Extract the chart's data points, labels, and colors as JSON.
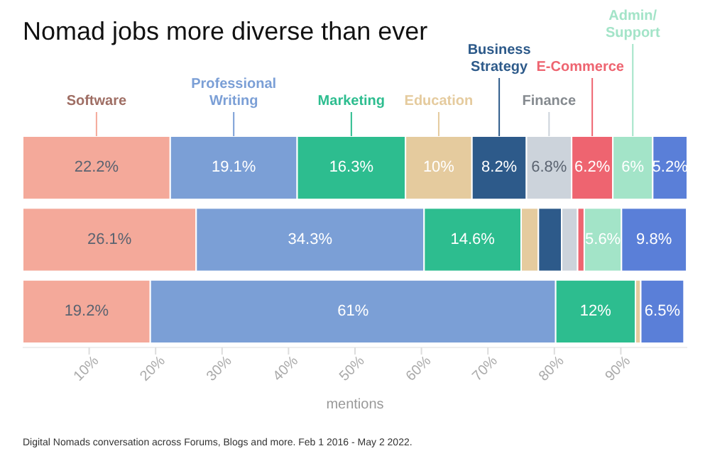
{
  "chart_data": {
    "type": "bar",
    "orientation": "horizontal",
    "stacked": true,
    "title": "Nomad jobs more diverse than ever",
    "xlabel": "mentions",
    "annotations": [
      "Digital Nomads conversation across Forums, Blogs and more. Feb 1 2016 - May 2 2022."
    ],
    "categories": [
      null,
      null,
      null
    ],
    "xlim": [
      0,
      100
    ],
    "xticks": [
      {
        "value": 10,
        "label": "10%"
      },
      {
        "value": 20,
        "label": "20%"
      },
      {
        "value": 30,
        "label": "30%"
      },
      {
        "value": 40,
        "label": "40%"
      },
      {
        "value": 50,
        "label": "50%"
      },
      {
        "value": 60,
        "label": "60%"
      },
      {
        "value": 70,
        "label": "70%"
      },
      {
        "value": 80,
        "label": "80%"
      },
      {
        "value": 90,
        "label": "90%"
      }
    ],
    "legend": "top",
    "series": [
      {
        "name": "Software",
        "color": "#f4a99a",
        "values": [
          22.2,
          26.1,
          19.2
        ],
        "value_labels": [
          "22.2%",
          "26.1%",
          "19.2%"
        ]
      },
      {
        "name": "Professional Writing",
        "color": "#7b9fd6",
        "values": [
          19.1,
          34.3,
          61
        ],
        "value_labels": [
          "19.1%",
          "34.3%",
          "61%"
        ]
      },
      {
        "name": "Marketing",
        "color": "#2dbd8f",
        "values": [
          16.3,
          14.6,
          12
        ],
        "value_labels": [
          "16.3%",
          "14.6%",
          "12%"
        ]
      },
      {
        "name": "Education",
        "color": "#e5cb9e",
        "values": [
          10,
          2.6,
          0.8
        ],
        "value_labels": [
          "10%",
          null,
          null
        ]
      },
      {
        "name": "Business Strategy",
        "color": "#2d5a8a",
        "values": [
          8.2,
          3.5,
          null
        ],
        "value_labels": [
          "8.2%",
          null,
          null
        ]
      },
      {
        "name": "Finance",
        "color": "#ccd3db",
        "values": [
          6.8,
          2.4,
          null
        ],
        "value_labels": [
          "6.8%",
          null,
          null
        ]
      },
      {
        "name": "E-Commerce",
        "color": "#ee6470",
        "values": [
          6.2,
          1,
          null
        ],
        "value_labels": [
          "6.2%",
          null,
          null
        ]
      },
      {
        "name": "Admin/Support",
        "color": "#a3e4c8",
        "values": [
          6,
          5.6,
          null
        ],
        "value_labels": [
          "6%",
          "5.6%",
          null
        ]
      },
      {
        "color": "#5a7fd8",
        "values": [
          5.2,
          9.8,
          6.5
        ],
        "value_labels": [
          "5.2%",
          "9.8%",
          "6.5%"
        ]
      }
    ]
  }
}
